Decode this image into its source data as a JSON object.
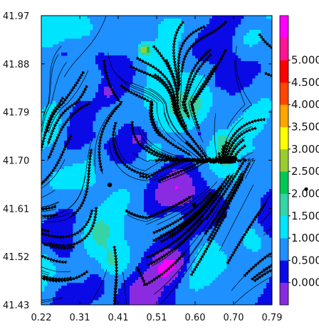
{
  "chart_data": {
    "type": "heatmap",
    "subtype": "filled contour map with streamline overlay",
    "title": "",
    "xlabel": "",
    "ylabel": "",
    "xlim": [
      0.22,
      0.79
    ],
    "ylim": [
      41.43,
      41.97
    ],
    "x_ticks": [
      "0.22",
      "0.31",
      "0.41",
      "0.51",
      "0.60",
      "0.70",
      "0.79"
    ],
    "y_ticks": [
      "41.97",
      "41.88",
      "41.79",
      "41.70",
      "41.61",
      "41.52",
      "41.43"
    ],
    "colorbar": {
      "range": [
        0.0,
        5.0
      ],
      "labels": [
        "0.000",
        "0.500",
        "1.000",
        "1.500",
        "2.000",
        "2.500",
        "3.000",
        "3.500",
        "4.000",
        "4.500",
        "5.000"
      ],
      "levels": [
        {
          "from": -0.5,
          "to": 0.0,
          "color": "#8a2be2"
        },
        {
          "from": 0.0,
          "to": 0.5,
          "color": "#0a0ae6"
        },
        {
          "from": 0.5,
          "to": 1.0,
          "color": "#1e90ff"
        },
        {
          "from": 1.0,
          "to": 1.5,
          "color": "#00e5ff"
        },
        {
          "from": 1.5,
          "to": 2.0,
          "color": "#35d4a6"
        },
        {
          "from": 2.0,
          "to": 2.5,
          "color": "#00c853"
        },
        {
          "from": 2.5,
          "to": 3.0,
          "color": "#9acd32"
        },
        {
          "from": 3.0,
          "to": 3.5,
          "color": "#ffff00"
        },
        {
          "from": 3.5,
          "to": 4.0,
          "color": "#ffa500"
        },
        {
          "from": 4.0,
          "to": 4.5,
          "color": "#ff4500"
        },
        {
          "from": 4.5,
          "to": 5.0,
          "color": "#ff0000"
        },
        {
          "from": 5.0,
          "to": 5.5,
          "color": "#ff1493"
        },
        {
          "from": 5.5,
          "to": 6.0,
          "color": "#ff00ff"
        }
      ],
      "marker_value": 2.1
    },
    "field_summary": "predominantly 0.0-1.0 with scattered 1.0-1.5 patches (largest near x 0.22-0.26, y 41.43-41.55 and in the upper half) and a small 2.0-3.0 hot spot near x 0.46, y 41.92",
    "points": [
      {
        "x": 0.389,
        "y": 41.654
      },
      {
        "x": 0.597,
        "y": 41.617
      }
    ],
    "grid": false,
    "legend": "colorbar at right"
  }
}
